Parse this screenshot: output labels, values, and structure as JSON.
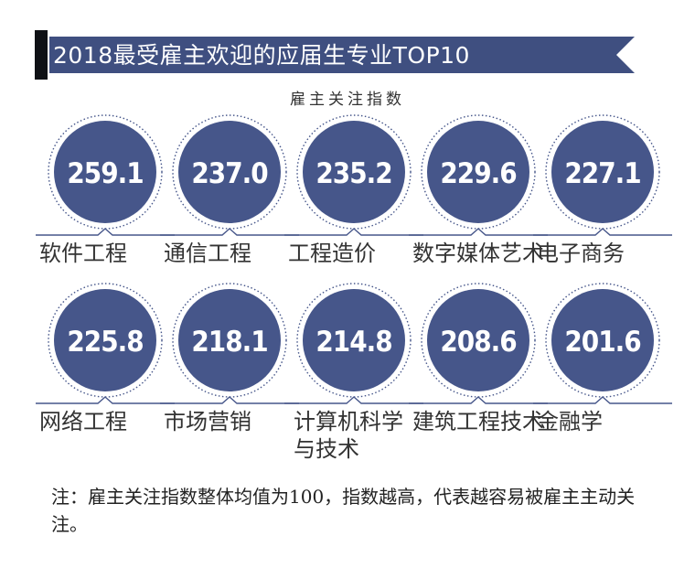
{
  "header": {
    "title": "2018最受雇主欢迎的应届生专业TOP10",
    "banner_color": "#3f4f80",
    "accent_bar_color": "#0f1115"
  },
  "subtitle": "雇主关注指数",
  "chart_data": {
    "type": "bar",
    "title": "2018最受雇主欢迎的应届生专业TOP10",
    "subtitle": "雇主关注指数",
    "categories": [
      "软件工程",
      "通信工程",
      "工程造价",
      "数字媒体艺术",
      "电子商务",
      "网络工程",
      "市场营销",
      "计算机科学与技术",
      "建筑工程技术",
      "金融学"
    ],
    "values": [
      259.1,
      237.0,
      235.2,
      229.6,
      227.1,
      225.8,
      218.1,
      214.8,
      208.6,
      201.6
    ],
    "value_labels": [
      "259.1",
      "237.0",
      "235.2",
      "229.6",
      "227.1",
      "225.8",
      "218.1",
      "214.8",
      "208.6",
      "201.6"
    ],
    "circle_color": "#46568a",
    "grid": false
  },
  "note": "注：雇主关注指数整体均值为100，指数越高，代表越容易被雇主主动关注。"
}
